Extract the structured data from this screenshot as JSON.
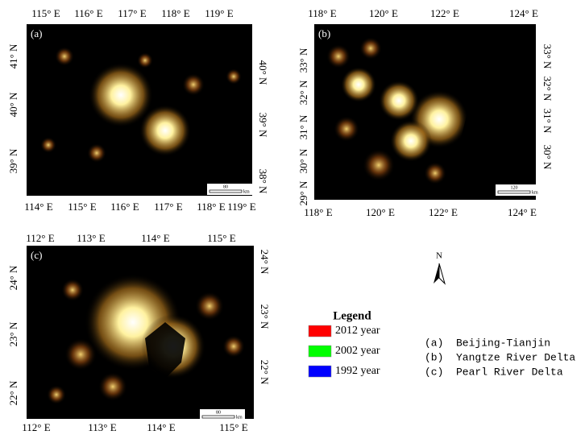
{
  "panels": [
    {
      "label": "(a)",
      "top_ticks": [
        "115° E",
        "116° E",
        "117° E",
        "118° E",
        "119° E"
      ],
      "bottom_ticks": [
        "114° E",
        "115° E",
        "116° E",
        "117° E",
        "118° E",
        "119° E"
      ],
      "left_ticks": [
        "41° N",
        "40° N",
        "39° N"
      ],
      "right_ticks": [
        "40° N",
        "39° N",
        "38° N"
      ],
      "scale": "80",
      "scale_unit": "km"
    },
    {
      "label": "(b)",
      "top_ticks": [
        "118° E",
        "120° E",
        "122° E",
        "124° E"
      ],
      "bottom_ticks": [
        "118° E",
        "120° E",
        "122° E",
        "124° E"
      ],
      "left_ticks": [
        "33° N",
        "32° N",
        "31° N",
        "30° N",
        "29° N"
      ],
      "right_ticks": [
        "33° N",
        "32° N",
        "31° N",
        "30° N"
      ],
      "scale": "120",
      "scale_unit": "km"
    },
    {
      "label": "(c)",
      "top_ticks": [
        "112° E",
        "113° E",
        "114° E",
        "115° E"
      ],
      "bottom_ticks": [
        "112° E",
        "113° E",
        "114° E",
        "115° E"
      ],
      "left_ticks": [
        "24° N",
        "23° N",
        "22° N"
      ],
      "right_ticks": [
        "24° N",
        "23° N",
        "22° N"
      ],
      "scale": "80",
      "scale_unit": "km"
    }
  ],
  "north": "N",
  "legend": {
    "title": "Legend",
    "items": [
      {
        "label": "2012 year",
        "color": "#ff0000"
      },
      {
        "label": "2002 year",
        "color": "#00ff00"
      },
      {
        "label": "1992 year",
        "color": "#0000ff"
      }
    ]
  },
  "regions": [
    "(a)  Beijing-Tianjin",
    "(b)  Yangtze River Delta",
    "(c)  Pearl River Delta"
  ]
}
